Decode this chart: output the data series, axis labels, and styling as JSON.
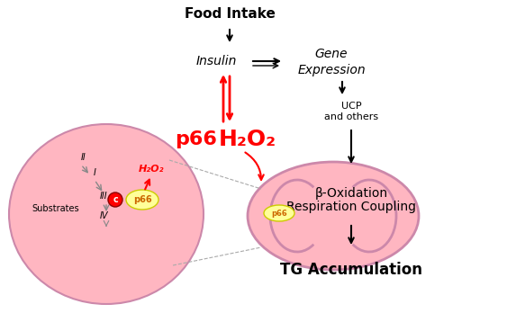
{
  "bg_color": "#ffffff",
  "pink_light": "#FFB6C1",
  "pink_mito": "#FFB6C1",
  "pink_cell": "#FFB6C1",
  "yellow_p66": "#FFFF99",
  "red_color": "#FF0000",
  "dark_red": "#CC0000",
  "gray_arrow": "#888888",
  "black": "#000000",
  "title_food": "Food Intake",
  "label_insulin": "Insulin",
  "label_gene": "Gene",
  "label_expression": "Expression",
  "label_ucp": "UCP",
  "label_and_others": "and others",
  "label_p66_red": "p66",
  "label_h2o2_red": "H₂O₂",
  "label_beta_ox": "β-Oxidation",
  "label_resp": "Respiration Coupling",
  "label_tg": "TG Accumulation",
  "label_substrates": "Substrates",
  "label_II": "II",
  "label_I": "I",
  "label_III": "III",
  "label_IV": "IV",
  "label_c": "c",
  "label_h2o2_small": "H₂O₂",
  "label_p66_small": "p66"
}
